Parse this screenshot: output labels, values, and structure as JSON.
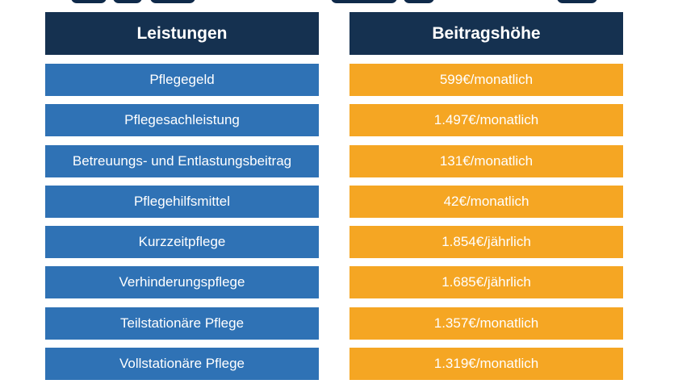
{
  "colors": {
    "header_bg": "#153150",
    "left_cell_bg": "#2f72b5",
    "right_cell_bg": "#f5a623",
    "text": "#ffffff"
  },
  "table": {
    "headers": [
      "Leistungen",
      "Beitragshöhe"
    ],
    "rows": [
      {
        "leistung": "Pflegegeld",
        "betrag": "599€/monatlich"
      },
      {
        "leistung": "Pflegesachleistung",
        "betrag": "1.497€/monatlich"
      },
      {
        "leistung": "Betreuungs- und Entlastungsbeitrag",
        "betrag": "131€/monatlich"
      },
      {
        "leistung": "Pflegehilfsmittel",
        "betrag": "42€/monatlich"
      },
      {
        "leistung": "Kurzzeitpflege",
        "betrag": "1.854€/jährlich"
      },
      {
        "leistung": "Verhinderungspflege",
        "betrag": "1.685€/jährlich"
      },
      {
        "leistung": "Teilstationäre Pflege",
        "betrag": "1.357€/monatlich"
      },
      {
        "leistung": "Vollstationäre Pflege",
        "betrag": "1.319€/monatlich"
      }
    ]
  }
}
